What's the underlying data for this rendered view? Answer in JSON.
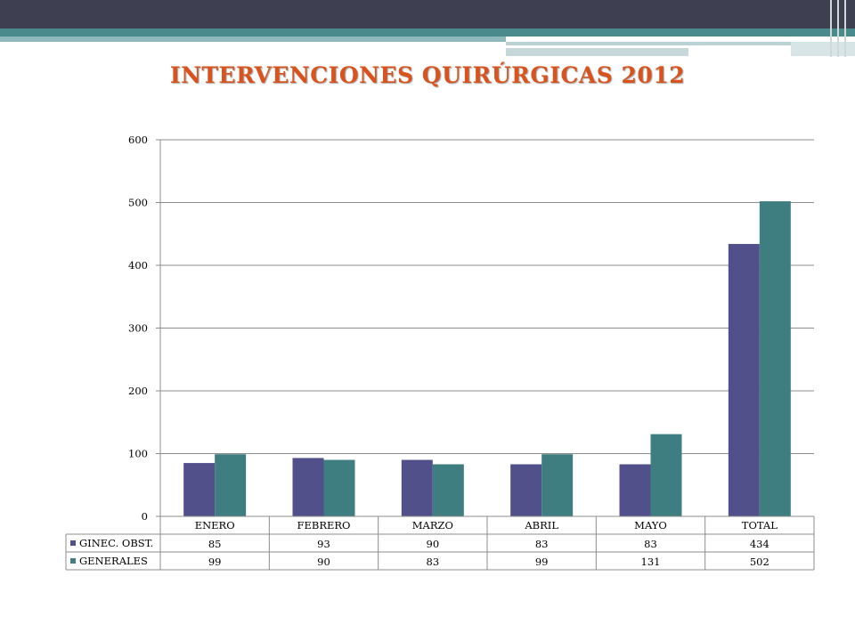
{
  "title": "INTERVENCIONES QUIRÚRGICAS 2012",
  "chart_data": {
    "type": "bar",
    "categories": [
      "ENERO",
      "FEBRERO",
      "MARZO",
      "ABRIL",
      "MAYO",
      "TOTAL"
    ],
    "series": [
      {
        "name": "GINEC. OBST.",
        "color": "#52508a",
        "values": [
          85,
          93,
          90,
          83,
          83,
          434
        ]
      },
      {
        "name": "GENERALES",
        "color": "#3f7e80",
        "values": [
          99,
          90,
          83,
          99,
          131,
          502
        ]
      }
    ],
    "ylim": [
      0,
      600
    ],
    "yticks": [
      0,
      100,
      200,
      300,
      400,
      500,
      600
    ],
    "grid": true,
    "legend": "data-table",
    "data_table": true
  }
}
